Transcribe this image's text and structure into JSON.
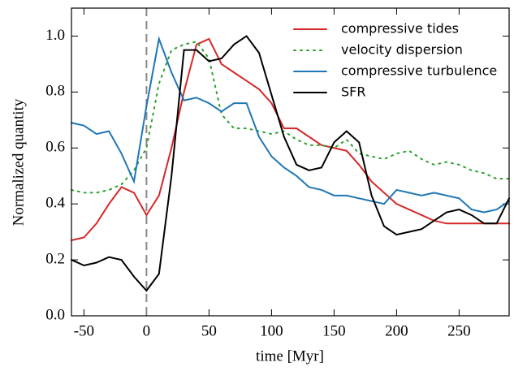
{
  "chart_data": {
    "type": "line",
    "x_label": "time [Myr]",
    "y_label": "Normalized quantity",
    "x": [
      -60,
      -50,
      -40,
      -30,
      -20,
      -10,
      0,
      10,
      20,
      30,
      40,
      50,
      60,
      70,
      80,
      90,
      100,
      110,
      120,
      130,
      140,
      150,
      160,
      170,
      180,
      190,
      200,
      210,
      220,
      230,
      240,
      250,
      260,
      270,
      280,
      290
    ],
    "series": [
      {
        "name": "compressive tides",
        "color": "#d62728",
        "style": "solid",
        "values": [
          0.27,
          0.28,
          0.33,
          0.4,
          0.46,
          0.44,
          0.36,
          0.43,
          0.6,
          0.8,
          0.97,
          0.99,
          0.9,
          0.87,
          0.84,
          0.81,
          0.76,
          0.67,
          0.67,
          0.64,
          0.61,
          0.6,
          0.59,
          0.54,
          0.48,
          0.44,
          0.4,
          0.38,
          0.36,
          0.34,
          0.33,
          0.33,
          0.33,
          0.33,
          0.33,
          0.33
        ]
      },
      {
        "name": "velocity dispersion",
        "color": "#2ca02c",
        "style": "dotted",
        "values": [
          0.45,
          0.44,
          0.44,
          0.45,
          0.47,
          0.52,
          0.6,
          0.83,
          0.95,
          0.97,
          0.98,
          0.92,
          0.72,
          0.67,
          0.67,
          0.66,
          0.65,
          0.66,
          0.63,
          0.61,
          0.61,
          0.6,
          0.63,
          0.58,
          0.57,
          0.56,
          0.58,
          0.59,
          0.56,
          0.54,
          0.55,
          0.54,
          0.52,
          0.51,
          0.49,
          0.49
        ]
      },
      {
        "name": "compressive turbulence",
        "color": "#1f77b4",
        "style": "solid",
        "values": [
          0.69,
          0.68,
          0.65,
          0.66,
          0.58,
          0.48,
          0.75,
          0.99,
          0.87,
          0.77,
          0.78,
          0.76,
          0.73,
          0.76,
          0.76,
          0.64,
          0.57,
          0.53,
          0.5,
          0.46,
          0.45,
          0.43,
          0.43,
          0.42,
          0.41,
          0.4,
          0.45,
          0.44,
          0.43,
          0.44,
          0.43,
          0.42,
          0.38,
          0.37,
          0.38,
          0.41
        ]
      },
      {
        "name": "SFR",
        "color": "#000000",
        "style": "solid",
        "values": [
          0.2,
          0.18,
          0.19,
          0.21,
          0.2,
          0.14,
          0.09,
          0.15,
          0.5,
          0.95,
          0.95,
          0.91,
          0.92,
          0.97,
          1.0,
          0.94,
          0.79,
          0.64,
          0.54,
          0.52,
          0.53,
          0.62,
          0.66,
          0.62,
          0.43,
          0.32,
          0.29,
          0.3,
          0.31,
          0.34,
          0.37,
          0.38,
          0.36,
          0.33,
          0.33,
          0.42
        ]
      }
    ],
    "xlim": [
      -60,
      290
    ],
    "ylim": [
      0,
      1.1
    ],
    "xticks": [
      -50,
      0,
      50,
      100,
      150,
      200,
      250
    ],
    "yticks": [
      {
        "value": 0,
        "label": "0.0"
      },
      0.2,
      0.4,
      0.6,
      0.8,
      {
        "value": 1,
        "label": "1.0"
      }
    ],
    "reference_line": {
      "x": 0,
      "color": "#888888",
      "style": "dashed"
    },
    "legend": "upper right",
    "grid": false
  }
}
